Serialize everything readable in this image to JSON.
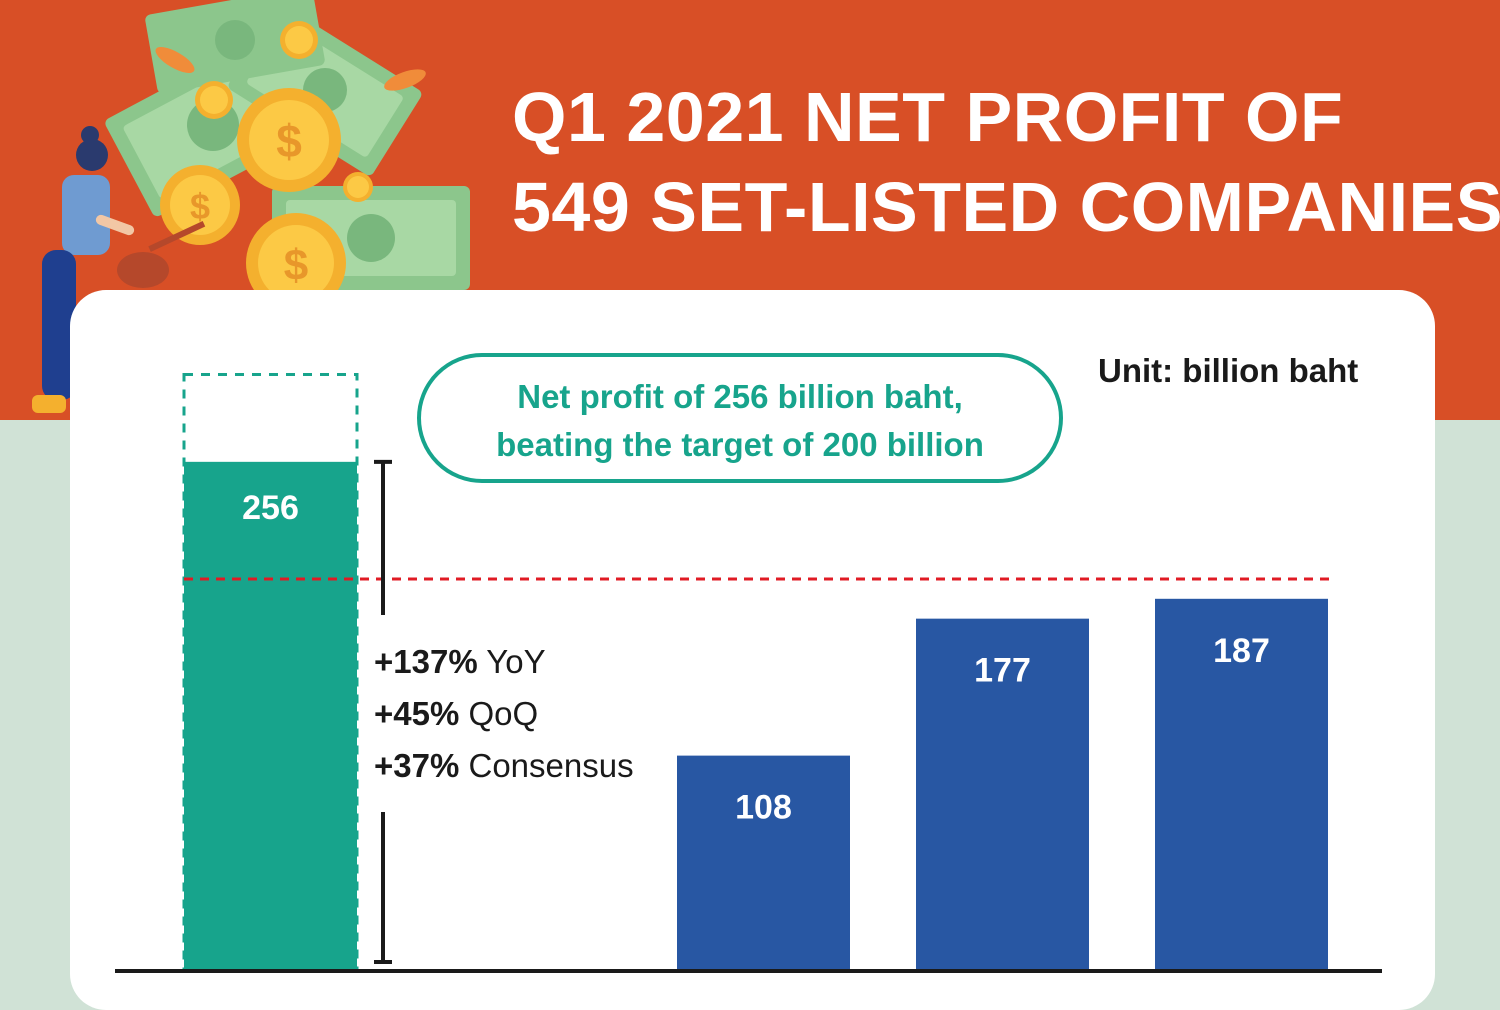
{
  "title": {
    "line1": "Q1 2021 NET PROFIT OF",
    "line2": "549 SET-LISTED COMPANIES"
  },
  "unit_label": "Unit: billion baht",
  "callout": {
    "line1": "Net profit of 256 billion baht,",
    "line2": "beating the target of 200 billion"
  },
  "metrics": [
    {
      "value": "+137%",
      "label": " YoY"
    },
    {
      "value": "+45%",
      "label": " QoQ"
    },
    {
      "value": "+37%",
      "label": " Consensus"
    }
  ],
  "colors": {
    "header_orange": "#d84f26",
    "background_green": "#d0e2d6",
    "teal": "#17a48c",
    "blue": "#2857a3",
    "target_line": "#e01b24"
  },
  "chart_data": {
    "type": "bar",
    "categories": [
      "",
      "",
      "",
      ""
    ],
    "values": [
      256,
      108,
      177,
      187
    ],
    "labels": [
      "256",
      "108",
      "177",
      "187"
    ],
    "highlight_index": 0,
    "target": 200,
    "ylim": [
      0,
      300
    ],
    "title": "Q1 2021 NET PROFIT OF 549 SET-LISTED COMPANIES",
    "ylabel": "Unit: billion baht"
  }
}
